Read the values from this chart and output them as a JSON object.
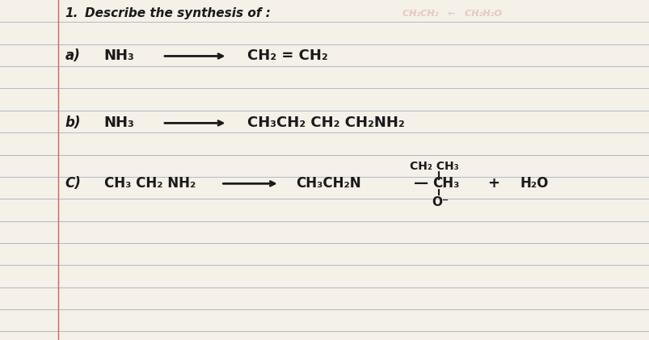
{
  "background_color": "#f5f0e8",
  "line_color": "#b0b8c8",
  "text_color": "#1a1a1a",
  "title": "1. Describe the synthesis of :",
  "title_faded": "CH₂CH₂   ←    CH₂H₂O",
  "section_a_label": "a)",
  "section_a_reactant": "NH₃",
  "section_a_product": "CH₂ = CH₂",
  "section_b_label": "b)",
  "section_b_reactant": "NH₃",
  "section_b_product": "CH₃CH₂ CH₂ CH₂NH₂",
  "section_c_label": "C)",
  "section_c_reactant": "CH₃ CH₂ NH₂",
  "section_c_branch": "CH₂ CH₃",
  "section_c_product": "CH₃CH₂N — CH₃",
  "section_c_oxygen": "O⁻",
  "section_c_extra": "+ H₂O",
  "fig_width": 8.04,
  "fig_height": 4.21,
  "dpi": 100
}
